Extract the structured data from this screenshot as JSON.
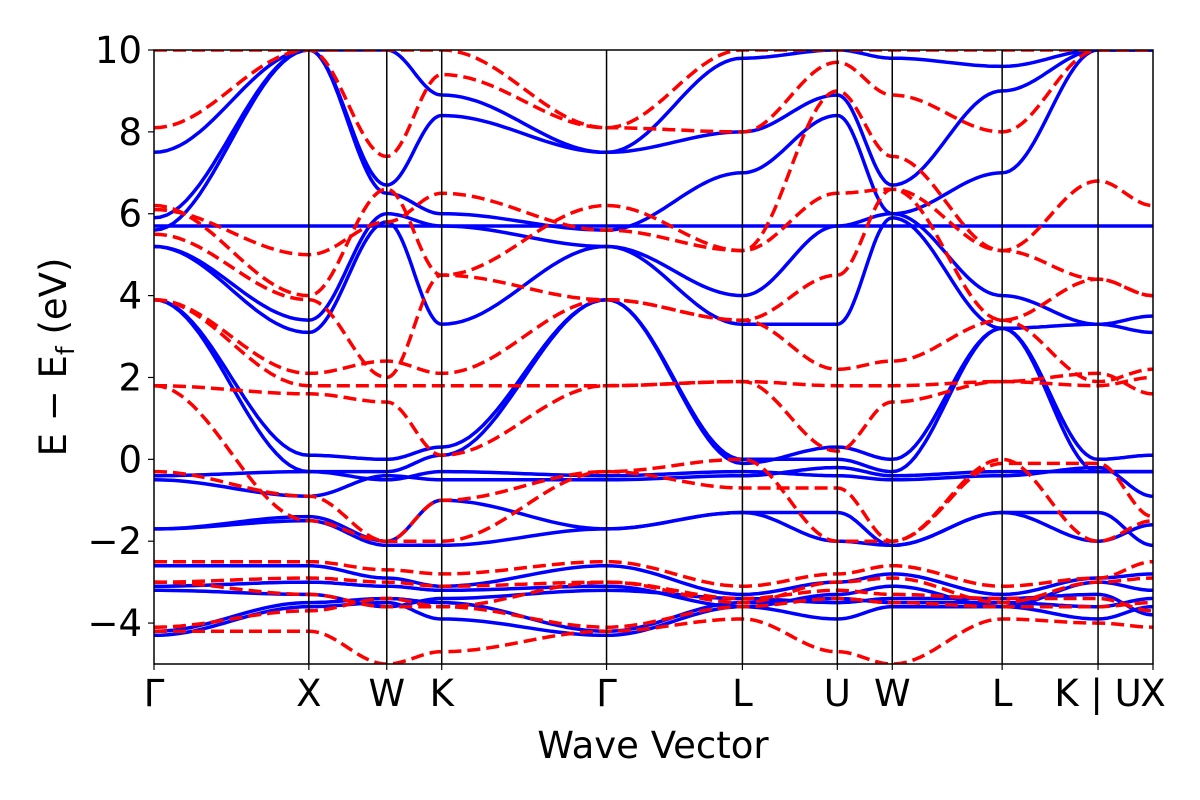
{
  "chart_data": {
    "type": "line",
    "title": "",
    "xlabel": "Wave Vector",
    "ylabel": {
      "main": "E − E",
      "sub": "f",
      "unit": " (eV)"
    },
    "xlim": [
      0,
      1
    ],
    "ylim": [
      -5,
      10
    ],
    "yticks": [
      -4,
      -2,
      0,
      2,
      4,
      6,
      8,
      10
    ],
    "ytick_labels": [
      "−4",
      "−2",
      "0",
      "2",
      "4",
      "6",
      "8",
      "10"
    ],
    "kpoints": [
      {
        "label": "Γ",
        "x": 0.0
      },
      {
        "label": "X",
        "x": 0.155
      },
      {
        "label": "W",
        "x": 0.233
      },
      {
        "label": "K",
        "x": 0.288
      },
      {
        "label": "Γ",
        "x": 0.453
      },
      {
        "label": "L",
        "x": 0.589
      },
      {
        "label": "U",
        "x": 0.684
      },
      {
        "label": "W",
        "x": 0.739
      },
      {
        "label": "L",
        "x": 0.849
      },
      {
        "label": "K | U",
        "x": 0.945
      },
      {
        "label": "X",
        "x": 1.0
      }
    ],
    "grid": false,
    "colors": {
      "series_a": "#0000ff",
      "series_b": "#ff0000",
      "axis": "#000000"
    },
    "series": [
      {
        "name": "solid",
        "style": "solid",
        "color": "#0000ff",
        "bands": [
          [
            -4.3,
            -3.6,
            -3.5,
            -3.9,
            -4.3,
            -3.6,
            -3.9,
            -3.6,
            -3.6,
            -3.9,
            -3.6
          ],
          [
            -4.2,
            -3.5,
            -3.4,
            -3.5,
            -4.2,
            -3.5,
            -3.4,
            -3.5,
            -3.5,
            -3.6,
            -3.4
          ],
          [
            -3.2,
            -3.3,
            -3.6,
            -3.4,
            -3.2,
            -3.4,
            -3.5,
            -3.4,
            -3.4,
            -3.3,
            -3.8
          ],
          [
            -3.1,
            -3.0,
            -3.1,
            -3.2,
            -3.1,
            -3.6,
            -3.3,
            -3.1,
            -3.6,
            -3.0,
            -3.2
          ],
          [
            -2.6,
            -2.6,
            -2.9,
            -3.1,
            -2.6,
            -3.3,
            -3.0,
            -2.8,
            -3.3,
            -2.9,
            -2.8
          ],
          [
            -1.7,
            -1.5,
            -2.1,
            -2.1,
            -1.7,
            -1.3,
            -1.3,
            -2.1,
            -1.3,
            -1.3,
            -2.1
          ],
          [
            -1.7,
            -1.4,
            -2.0,
            -1.0,
            -1.7,
            -1.3,
            -2.0,
            -2.1,
            -1.3,
            -2.0,
            -1.6
          ],
          [
            -0.5,
            -0.9,
            -0.4,
            -0.5,
            -0.5,
            -0.4,
            -0.2,
            -0.4,
            -0.3,
            -0.3,
            -0.3
          ],
          [
            -0.4,
            -0.3,
            -0.5,
            -0.3,
            -0.4,
            -0.3,
            -0.4,
            -0.5,
            -0.4,
            -0.2,
            -0.9
          ],
          [
            3.9,
            0.1,
            0.0,
            0.3,
            3.9,
            -0.1,
            0.3,
            0.0,
            3.2,
            0.0,
            0.1
          ],
          [
            3.9,
            -0.3,
            -0.3,
            0.1,
            3.9,
            0.0,
            0.0,
            -0.3,
            3.2,
            -0.3,
            -0.3
          ],
          [
            5.2,
            3.1,
            5.8,
            3.3,
            5.2,
            3.3,
            3.3,
            5.9,
            3.2,
            3.3,
            3.1
          ],
          [
            5.2,
            3.4,
            6.0,
            5.7,
            5.2,
            4.0,
            5.7,
            6.0,
            4.0,
            3.3,
            3.5
          ],
          [
            5.7,
            5.7,
            5.7,
            5.7,
            5.7,
            5.7,
            5.7,
            5.7,
            5.7,
            5.7,
            5.7
          ],
          [
            5.6,
            10.0,
            6.5,
            6.0,
            5.6,
            7.0,
            8.4,
            6.0,
            7.0,
            10.0,
            10.0
          ],
          [
            5.9,
            10.0,
            6.7,
            8.4,
            7.5,
            8.0,
            8.9,
            6.7,
            9.0,
            10.0,
            10.0
          ],
          [
            7.5,
            10.0,
            10.0,
            8.9,
            7.5,
            9.8,
            10.0,
            9.8,
            9.6,
            10.0,
            10.0
          ]
        ]
      },
      {
        "name": "dashed",
        "style": "dashed",
        "color": "#ff0000",
        "bands": [
          [
            -4.2,
            -4.2,
            -5.0,
            -4.7,
            -4.2,
            -3.9,
            -4.7,
            -5.0,
            -3.9,
            -4.0,
            -4.1
          ],
          [
            -4.1,
            -3.7,
            -3.4,
            -3.6,
            -4.1,
            -3.6,
            -3.4,
            -3.5,
            -3.6,
            -3.6,
            -3.5
          ],
          [
            -3.0,
            -3.3,
            -3.6,
            -3.6,
            -3.0,
            -3.5,
            -3.0,
            -2.9,
            -3.5,
            -3.0,
            -2.9
          ],
          [
            -3.0,
            -2.9,
            -3.0,
            -3.1,
            -3.0,
            -3.4,
            -3.2,
            -3.3,
            -3.4,
            -3.4,
            -3.7
          ],
          [
            -2.5,
            -2.5,
            -2.7,
            -2.8,
            -2.5,
            -3.1,
            -2.8,
            -2.6,
            -3.1,
            -2.9,
            -2.5
          ],
          [
            -0.3,
            -0.9,
            -2.0,
            -2.0,
            -0.3,
            0.0,
            -2.0,
            -2.0,
            0.0,
            -2.0,
            -1.5
          ],
          [
            1.8,
            -1.5,
            -2.0,
            -1.0,
            -0.3,
            -0.7,
            -0.7,
            -2.0,
            -0.1,
            -0.1,
            -1.4
          ],
          [
            1.8,
            1.6,
            1.4,
            0.1,
            1.8,
            1.9,
            0.2,
            1.4,
            1.9,
            2.1,
            1.6
          ],
          [
            3.9,
            1.8,
            1.8,
            1.8,
            1.8,
            1.9,
            1.8,
            1.8,
            1.9,
            1.8,
            2.0
          ],
          [
            3.9,
            2.1,
            2.4,
            2.1,
            3.9,
            3.4,
            2.2,
            2.4,
            3.4,
            1.9,
            2.2
          ],
          [
            5.5,
            3.9,
            2.0,
            4.5,
            3.9,
            3.4,
            4.5,
            6.6,
            3.4,
            4.4,
            4.0
          ],
          [
            6.1,
            5.0,
            5.8,
            6.5,
            5.6,
            5.1,
            6.5,
            6.6,
            5.1,
            4.4,
            4.0
          ],
          [
            6.2,
            4.0,
            6.6,
            4.5,
            6.2,
            5.1,
            9.0,
            7.4,
            5.1,
            6.8,
            6.2
          ],
          [
            8.1,
            10.0,
            7.4,
            9.4,
            8.1,
            8.0,
            9.7,
            8.9,
            8.0,
            10.0,
            10.0
          ],
          [
            10.0,
            10.0,
            10.0,
            10.0,
            8.1,
            10.0,
            10.0,
            10.0,
            10.0,
            10.0,
            10.0
          ]
        ]
      }
    ]
  }
}
